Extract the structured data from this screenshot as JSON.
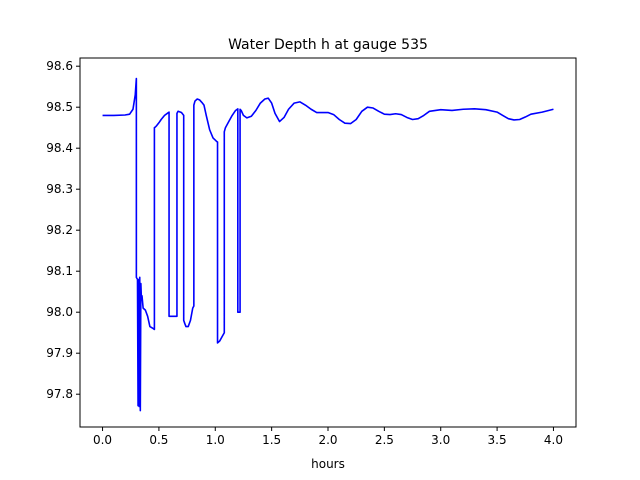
{
  "chart_data": {
    "type": "line",
    "title": "Water Depth h at gauge 535",
    "xlabel": "hours",
    "ylabel": "",
    "xlim": [
      -0.2,
      4.2
    ],
    "ylim": [
      97.72,
      98.62
    ],
    "xticks": [
      0.0,
      0.5,
      1.0,
      1.5,
      2.0,
      2.5,
      3.0,
      3.5,
      4.0
    ],
    "xtick_labels": [
      "0.0",
      "0.5",
      "1.0",
      "1.5",
      "2.0",
      "2.5",
      "3.0",
      "3.5",
      "4.0"
    ],
    "yticks": [
      97.8,
      97.9,
      98.0,
      98.1,
      98.2,
      98.3,
      98.4,
      98.5,
      98.6
    ],
    "ytick_labels": [
      "97.8",
      "97.9",
      "98.0",
      "98.1",
      "98.2",
      "98.3",
      "98.4",
      "98.5",
      "98.6"
    ],
    "grid": false,
    "series": [
      {
        "color": "#0000ff",
        "x": [
          0.0,
          0.1,
          0.2,
          0.24,
          0.27,
          0.29,
          0.3,
          0.3,
          0.31,
          0.315,
          0.32,
          0.325,
          0.33,
          0.335,
          0.34,
          0.345,
          0.35,
          0.36,
          0.38,
          0.4,
          0.42,
          0.45,
          0.46,
          0.46,
          0.47,
          0.48,
          0.5,
          0.52,
          0.55,
          0.58,
          0.59,
          0.59,
          0.61,
          0.65,
          0.66,
          0.66,
          0.67,
          0.7,
          0.72,
          0.72,
          0.73,
          0.74,
          0.76,
          0.78,
          0.8,
          0.81,
          0.81,
          0.82,
          0.84,
          0.86,
          0.88,
          0.9,
          0.92,
          0.95,
          0.98,
          1.01,
          1.02,
          1.02,
          1.04,
          1.06,
          1.08,
          1.08,
          1.09,
          1.12,
          1.15,
          1.18,
          1.2,
          1.2,
          1.21,
          1.22,
          1.22,
          1.23,
          1.25,
          1.28,
          1.32,
          1.36,
          1.4,
          1.44,
          1.47,
          1.5,
          1.53,
          1.57,
          1.61,
          1.65,
          1.7,
          1.75,
          1.8,
          1.85,
          1.9,
          1.95,
          2.0,
          2.05,
          2.1,
          2.15,
          2.2,
          2.25,
          2.3,
          2.35,
          2.4,
          2.45,
          2.5,
          2.55,
          2.6,
          2.65,
          2.7,
          2.75,
          2.8,
          2.85,
          2.9,
          3.0,
          3.1,
          3.2,
          3.3,
          3.4,
          3.5,
          3.55,
          3.6,
          3.65,
          3.7,
          3.75,
          3.8,
          3.9,
          4.0
        ],
        "y": [
          98.48,
          98.48,
          98.481,
          98.483,
          98.495,
          98.53,
          98.57,
          98.085,
          98.08,
          97.772,
          98.08,
          97.77,
          98.085,
          97.76,
          98.07,
          98.03,
          98.04,
          98.01,
          98.005,
          97.99,
          97.965,
          97.96,
          97.958,
          98.45,
          98.452,
          98.455,
          98.462,
          98.47,
          98.48,
          98.486,
          98.488,
          97.99,
          97.99,
          97.99,
          97.99,
          98.485,
          98.49,
          98.487,
          98.48,
          97.98,
          97.972,
          97.965,
          97.965,
          97.98,
          98.01,
          98.015,
          98.505,
          98.515,
          98.52,
          98.518,
          98.512,
          98.505,
          98.48,
          98.445,
          98.425,
          98.417,
          98.415,
          97.925,
          97.93,
          97.94,
          97.95,
          98.44,
          98.45,
          98.465,
          98.48,
          98.492,
          98.496,
          98.0,
          98.0,
          98.0,
          98.495,
          98.492,
          98.48,
          98.474,
          98.478,
          98.492,
          98.51,
          98.52,
          98.522,
          98.51,
          98.485,
          98.465,
          98.475,
          98.495,
          98.51,
          98.513,
          98.505,
          98.495,
          98.487,
          98.487,
          98.487,
          98.482,
          98.47,
          98.461,
          98.46,
          98.47,
          98.49,
          98.5,
          98.498,
          98.49,
          98.483,
          98.482,
          98.484,
          98.482,
          98.475,
          98.47,
          98.472,
          98.48,
          98.49,
          98.494,
          98.492,
          98.495,
          98.496,
          98.494,
          98.488,
          98.48,
          98.472,
          98.469,
          98.47,
          98.476,
          98.483,
          98.488,
          98.495
        ]
      }
    ]
  }
}
